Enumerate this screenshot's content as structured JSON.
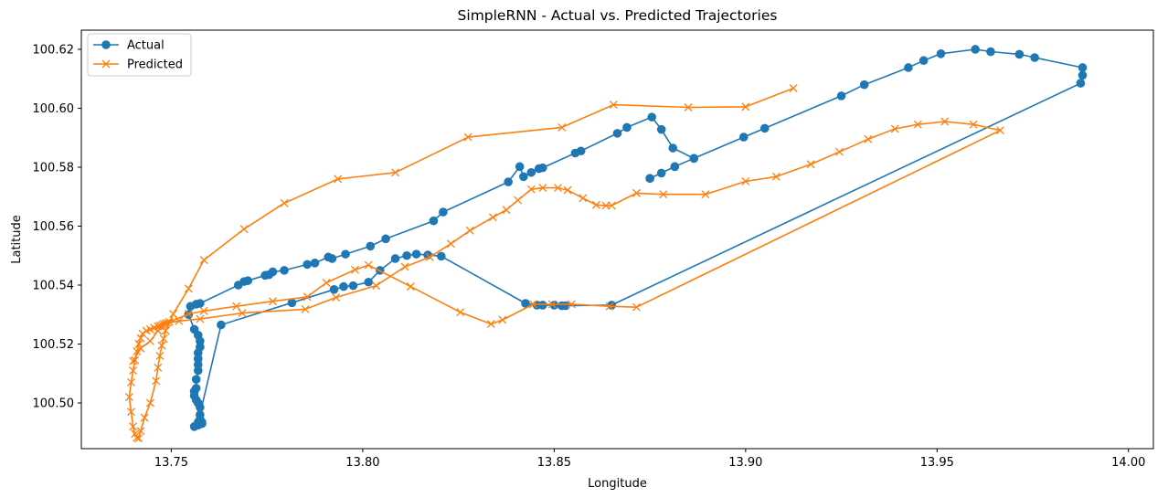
{
  "chart_data": {
    "type": "line",
    "title": "SimpleRNN - Actual vs. Predicted Trajectories",
    "xlabel": "Longitude",
    "ylabel": "Latitude",
    "xlim": [
      13.7265,
      14.0065
    ],
    "ylim": [
      100.4845,
      100.6265
    ],
    "xticks": [
      "13.75",
      "13.80",
      "13.85",
      "13.90",
      "13.95",
      "14.00"
    ],
    "yticks": [
      "100.50",
      "100.52",
      "100.54",
      "100.56",
      "100.58",
      "100.60",
      "100.62"
    ],
    "grid": false,
    "legend_position": "top-left",
    "series": [
      {
        "name": "Actual",
        "color": "#1f77b4",
        "marker": "circle",
        "x": [
          13.875,
          13.8815,
          13.8865,
          13.881,
          13.878,
          13.8755,
          13.869,
          13.8665,
          13.857,
          13.8555,
          13.847,
          13.846,
          13.844,
          13.842,
          13.841,
          13.838,
          13.821,
          13.8185,
          13.806,
          13.802,
          13.7955,
          13.792,
          13.791,
          13.7875,
          13.7855,
          13.7795,
          13.7765,
          13.7755,
          13.7745,
          13.77,
          13.769,
          13.7675,
          13.7575,
          13.7565,
          13.755,
          13.7545,
          13.756,
          13.757,
          13.7575,
          13.7575,
          13.757,
          13.757,
          13.757,
          13.757,
          13.7565,
          13.7565,
          13.756,
          13.756,
          13.7565,
          13.757,
          13.7575,
          13.7575,
          13.7575,
          13.758,
          13.758,
          13.757,
          13.756,
          13.757,
          13.763,
          13.7815,
          13.7925,
          13.795,
          13.7975,
          13.8015,
          13.8045,
          13.8085,
          13.8115,
          13.814,
          13.817,
          13.8205,
          13.8425,
          13.8455,
          13.847,
          13.85,
          13.852,
          13.853,
          13.865,
          13.9875,
          13.988,
          13.988,
          13.9755,
          13.9715,
          13.964,
          13.96,
          13.951,
          13.9465,
          13.9425,
          13.931,
          13.925,
          13.905,
          13.8995,
          13.8865,
          13.8815,
          13.878,
          13.875
        ],
        "y": [
          100.5762,
          100.5802,
          100.583,
          100.5865,
          100.5928,
          100.597,
          100.5935,
          100.5915,
          100.5855,
          100.5848,
          100.5798,
          100.5795,
          100.5782,
          100.5768,
          100.5802,
          100.575,
          100.5648,
          100.5618,
          100.5557,
          100.5532,
          100.5505,
          100.549,
          100.5495,
          100.5475,
          100.547,
          100.545,
          100.5445,
          100.5435,
          100.5433,
          100.5415,
          100.5412,
          100.54,
          100.5338,
          100.5335,
          100.5328,
          100.53,
          100.525,
          100.523,
          100.521,
          100.519,
          100.517,
          100.515,
          100.513,
          100.511,
          100.508,
          100.505,
          100.504,
          100.5025,
          100.501,
          100.5,
          100.4985,
          100.496,
          100.4945,
          100.4935,
          100.493,
          100.4925,
          100.492,
          100.4935,
          100.5265,
          100.534,
          100.5385,
          100.5395,
          100.5398,
          100.541,
          100.545,
          100.549,
          100.55,
          100.5505,
          100.5502,
          100.5498,
          100.5338,
          100.5332,
          100.5332,
          100.5332,
          100.533,
          100.533,
          100.5332,
          100.6085,
          100.6112,
          100.6138,
          100.6172,
          100.6183,
          100.6192,
          100.62,
          100.6185,
          100.6162,
          100.6138,
          100.608,
          100.6042,
          100.5932,
          100.5902,
          100.583,
          100.5802,
          100.578,
          100.5762
        ]
      },
      {
        "name": "Predicted",
        "color": "#ff7f0e",
        "marker": "x",
        "x": [
          13.9125,
          13.9,
          13.885,
          13.8655,
          13.852,
          13.8275,
          13.8085,
          13.7935,
          13.7795,
          13.769,
          13.7585,
          13.7545,
          13.7505,
          13.7485,
          13.748,
          13.7475,
          13.747,
          13.7465,
          13.746,
          13.7445,
          13.743,
          13.742,
          13.7415,
          13.741,
          13.7405,
          13.74,
          13.7395,
          13.739,
          13.7395,
          13.74,
          13.7405,
          13.741,
          13.7415,
          13.742,
          13.7425,
          13.7435,
          13.7445,
          13.7455,
          13.7465,
          13.747,
          13.7475,
          13.748,
          13.7485,
          13.749,
          13.752,
          13.7575,
          13.7685,
          13.785,
          13.793,
          13.8035,
          13.811,
          13.8175,
          13.823,
          13.828,
          13.834,
          13.8375,
          13.8405,
          13.844,
          13.847,
          13.851,
          13.8535,
          13.8575,
          13.861,
          13.8635,
          13.865,
          13.8715,
          13.8785,
          13.8895,
          13.9,
          13.908,
          13.917,
          13.9245,
          13.932,
          13.939,
          13.945,
          13.952,
          13.9595,
          13.9665,
          13.8715,
          13.8645,
          13.8545,
          13.8495,
          13.8445,
          13.8365,
          13.8335,
          13.8255,
          13.8125,
          13.8015,
          13.798,
          13.7905,
          13.7855,
          13.7765,
          13.767,
          13.7585,
          13.7545,
          13.7495,
          13.7465,
          13.7445,
          13.742,
          13.74
        ],
        "y": [
          100.6068,
          100.6005,
          100.6003,
          100.6012,
          100.5935,
          100.5902,
          100.5782,
          100.576,
          100.5678,
          100.559,
          100.5485,
          100.5388,
          100.5302,
          100.5245,
          100.5218,
          100.5195,
          100.516,
          100.512,
          100.5075,
          100.5,
          100.495,
          100.4905,
          100.488,
          100.4882,
          100.4895,
          100.492,
          100.497,
          100.502,
          100.507,
          100.511,
          100.5145,
          100.5175,
          100.52,
          100.522,
          100.5235,
          100.5245,
          100.525,
          100.5255,
          100.526,
          100.5262,
          100.5265,
          100.5268,
          100.527,
          100.5272,
          100.5278,
          100.5285,
          100.5305,
          100.5318,
          100.5358,
          100.5398,
          100.5462,
          100.5495,
          100.554,
          100.5585,
          100.563,
          100.5655,
          100.5688,
          100.5725,
          100.573,
          100.573,
          100.5722,
          100.5695,
          100.5672,
          100.567,
          100.567,
          100.5712,
          100.5708,
          100.5708,
          100.5752,
          100.5768,
          100.581,
          100.5852,
          100.5895,
          100.593,
          100.5945,
          100.5955,
          100.5945,
          100.5925,
          100.5325,
          100.5328,
          100.5335,
          100.5335,
          100.5335,
          100.5282,
          100.5268,
          100.5308,
          100.5395,
          100.5468,
          100.5452,
          100.5408,
          100.536,
          100.5345,
          100.5328,
          100.5312,
          100.5302,
          100.5275,
          100.5245,
          100.521,
          100.5185,
          100.5142
        ]
      }
    ]
  }
}
